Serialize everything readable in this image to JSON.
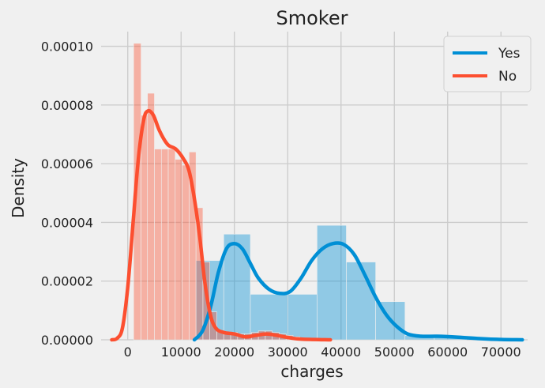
{
  "chart_data": {
    "type": "histogram_kde",
    "title": "Smoker",
    "xlabel": "charges",
    "ylabel": "Density",
    "xlim": [
      -5000,
      75000
    ],
    "ylim": [
      0,
      0.000105
    ],
    "xticks": [
      0,
      10000,
      20000,
      30000,
      40000,
      50000,
      60000,
      70000
    ],
    "xtick_labels": [
      "0",
      "10000",
      "20000",
      "30000",
      "40000",
      "50000",
      "60000",
      "70000"
    ],
    "yticks": [
      0,
      2e-05,
      4e-05,
      6e-05,
      8e-05,
      0.0001
    ],
    "ytick_labels": [
      "0.00000",
      "0.00002",
      "0.00004",
      "0.00006",
      "0.00008",
      "0.00010"
    ],
    "grid": true,
    "legend_position": "top-right",
    "series": [
      {
        "name": "Yes",
        "color": "#008fd5",
        "hist_bins": [
          {
            "x0": 12800,
            "x1": 18000,
            "density": 2.7e-05
          },
          {
            "x0": 18000,
            "x1": 23000,
            "density": 3.6e-05
          },
          {
            "x0": 23000,
            "x1": 30000,
            "density": 1.55e-05
          },
          {
            "x0": 30000,
            "x1": 35500,
            "density": 1.55e-05
          },
          {
            "x0": 35500,
            "x1": 41000,
            "density": 3.9e-05
          },
          {
            "x0": 41000,
            "x1": 46500,
            "density": 2.65e-05
          },
          {
            "x0": 46500,
            "x1": 52000,
            "density": 1.3e-05
          },
          {
            "x0": 52000,
            "x1": 57500,
            "density": 1.5e-06
          },
          {
            "x0": 57500,
            "x1": 63500,
            "density": 1e-06
          }
        ],
        "kde_points": [
          [
            12500,
            0
          ],
          [
            14000,
            3e-06
          ],
          [
            15500,
            1.1e-05
          ],
          [
            17000,
            2.3e-05
          ],
          [
            18500,
            3.1e-05
          ],
          [
            20000,
            3.28e-05
          ],
          [
            21500,
            3.1e-05
          ],
          [
            23000,
            2.6e-05
          ],
          [
            24500,
            2.1e-05
          ],
          [
            26500,
            1.72e-05
          ],
          [
            28500,
            1.58e-05
          ],
          [
            30500,
            1.65e-05
          ],
          [
            32500,
            2.1e-05
          ],
          [
            34500,
            2.7e-05
          ],
          [
            36500,
            3.1e-05
          ],
          [
            38500,
            3.28e-05
          ],
          [
            40500,
            3.25e-05
          ],
          [
            42500,
            2.9e-05
          ],
          [
            44500,
            2.2e-05
          ],
          [
            46500,
            1.45e-05
          ],
          [
            48500,
            8.5e-06
          ],
          [
            50500,
            4.5e-06
          ],
          [
            52500,
            2e-06
          ],
          [
            55000,
            1.2e-06
          ],
          [
            58000,
            1.2e-06
          ],
          [
            62000,
            9e-07
          ],
          [
            66000,
            4e-07
          ],
          [
            70000,
            1e-07
          ],
          [
            74000,
            0
          ]
        ]
      },
      {
        "name": "No",
        "color": "#fc4f30",
        "hist_bins": [
          {
            "x0": 1100,
            "x1": 2500,
            "density": 0.000101
          },
          {
            "x0": 2500,
            "x1": 3700,
            "density": 7.65e-05
          },
          {
            "x0": 3700,
            "x1": 5000,
            "density": 8.4e-05
          },
          {
            "x0": 5000,
            "x1": 6300,
            "density": 6.5e-05
          },
          {
            "x0": 6300,
            "x1": 7600,
            "density": 6.5e-05
          },
          {
            "x0": 7600,
            "x1": 8900,
            "density": 6.5e-05
          },
          {
            "x0": 8900,
            "x1": 10200,
            "density": 6.15e-05
          },
          {
            "x0": 10200,
            "x1": 11500,
            "density": 5.95e-05
          },
          {
            "x0": 11500,
            "x1": 12800,
            "density": 6.4e-05
          },
          {
            "x0": 12800,
            "x1": 14100,
            "density": 4.5e-05
          },
          {
            "x0": 14100,
            "x1": 15400,
            "density": 2.65e-05
          },
          {
            "x0": 15400,
            "x1": 16700,
            "density": 9.5e-06
          },
          {
            "x0": 16700,
            "x1": 18000,
            "density": 3e-06
          },
          {
            "x0": 18000,
            "x1": 19300,
            "density": 2.5e-06
          },
          {
            "x0": 19300,
            "x1": 20600,
            "density": 2.5e-06
          },
          {
            "x0": 20600,
            "x1": 21900,
            "density": 2e-06
          },
          {
            "x0": 21900,
            "x1": 23200,
            "density": 2e-06
          },
          {
            "x0": 23200,
            "x1": 24500,
            "density": 2.5e-06
          },
          {
            "x0": 24500,
            "x1": 25800,
            "density": 3e-06
          },
          {
            "x0": 25800,
            "x1": 27100,
            "density": 3e-06
          },
          {
            "x0": 27100,
            "x1": 28400,
            "density": 2.5e-06
          },
          {
            "x0": 28400,
            "x1": 29700,
            "density": 2e-06
          },
          {
            "x0": 29700,
            "x1": 31000,
            "density": 1.5e-06
          },
          {
            "x0": 31000,
            "x1": 32300,
            "density": 1e-06
          },
          {
            "x0": 32300,
            "x1": 33600,
            "density": 5e-07
          },
          {
            "x0": 33600,
            "x1": 34900,
            "density": 5e-07
          },
          {
            "x0": 34900,
            "x1": 36200,
            "density": 3e-07
          }
        ],
        "kde_points": [
          [
            -3000,
            0
          ],
          [
            -2000,
            5e-07
          ],
          [
            -1000,
            4e-06
          ],
          [
            0,
            1.8e-05
          ],
          [
            1000,
            4e-05
          ],
          [
            2000,
            6.2e-05
          ],
          [
            3000,
            7.5e-05
          ],
          [
            3800,
            7.8e-05
          ],
          [
            4800,
            7.65e-05
          ],
          [
            6000,
            7.1e-05
          ],
          [
            7500,
            6.65e-05
          ],
          [
            9000,
            6.5e-05
          ],
          [
            10500,
            6.15e-05
          ],
          [
            11500,
            5.75e-05
          ],
          [
            12500,
            4.8e-05
          ],
          [
            13500,
            3.5e-05
          ],
          [
            14500,
            1.9e-05
          ],
          [
            15500,
            8.5e-06
          ],
          [
            16500,
            4e-06
          ],
          [
            18000,
            2.5e-06
          ],
          [
            20000,
            2e-06
          ],
          [
            22000,
            1e-06
          ],
          [
            24000,
            1.5e-06
          ],
          [
            26000,
            2e-06
          ],
          [
            28000,
            1.5e-06
          ],
          [
            30000,
            8e-07
          ],
          [
            32000,
            3e-07
          ],
          [
            35000,
            1e-07
          ],
          [
            38000,
            0
          ]
        ]
      }
    ]
  }
}
